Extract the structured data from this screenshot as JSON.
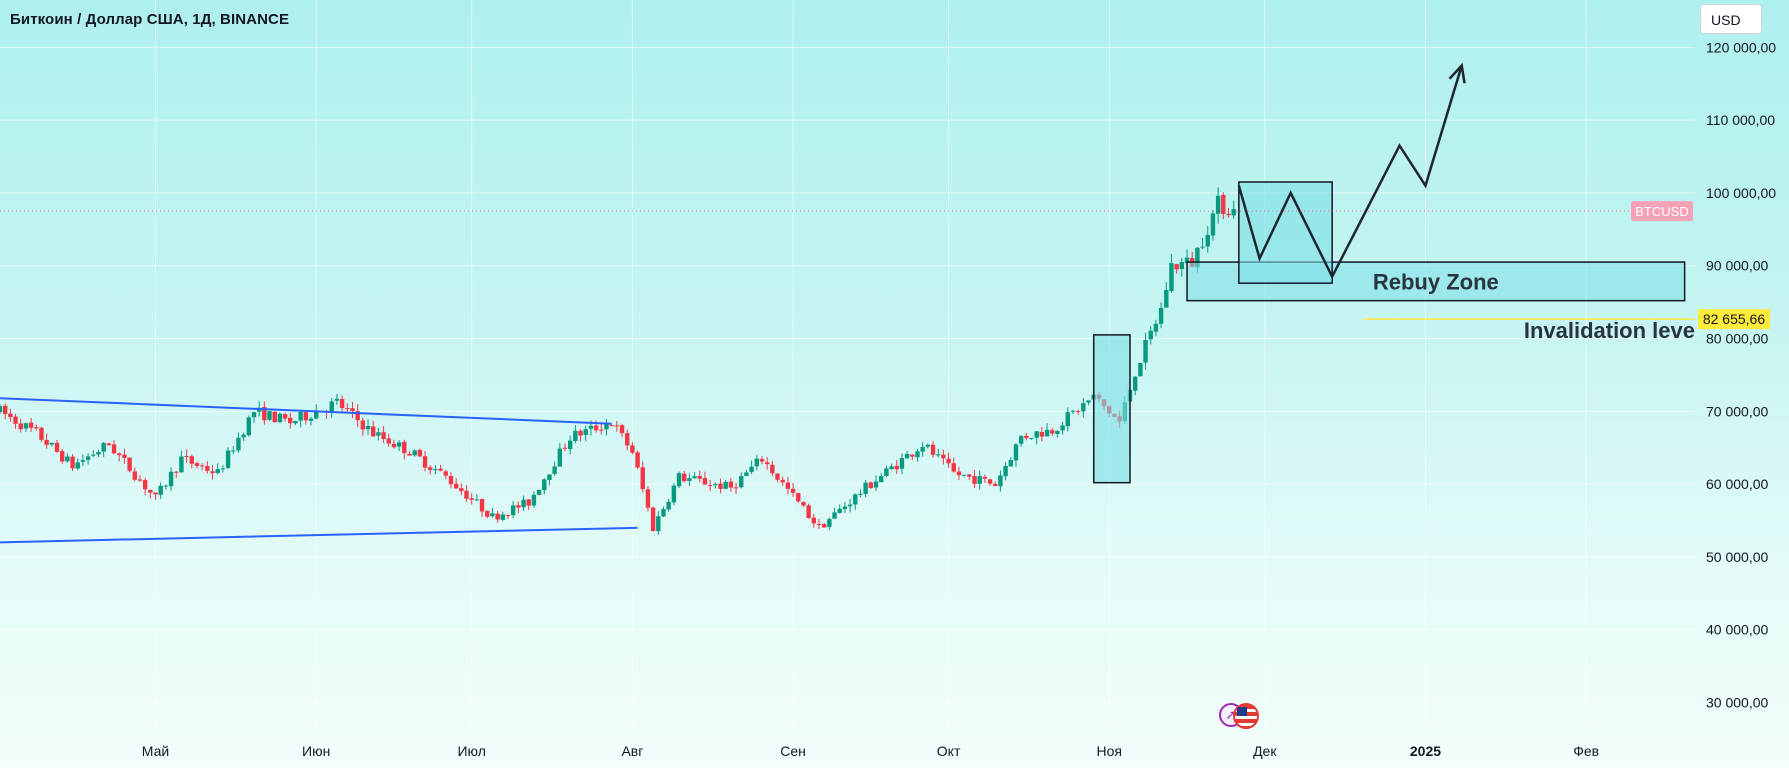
{
  "header": {
    "title": "Биткоин / Доллар США, 1Д, BINANCE",
    "currency_button": "USD"
  },
  "chart_data": {
    "type": "candlestick",
    "symbol": "BTCUSD",
    "last_price_label": "BTCUSD",
    "price_axis_ticks": [
      "120 000,00",
      "110 000,00",
      "100 000,00",
      "90 000,00",
      "80 000,00",
      "70 000,00",
      "60 000,00",
      "50 000,00",
      "40 000,00",
      "30 000,00"
    ],
    "price_axis_values": [
      120000,
      110000,
      100000,
      90000,
      80000,
      70000,
      60000,
      50000,
      40000,
      30000
    ],
    "time_axis_labels": [
      {
        "label": "Май",
        "date": "2024-05-01"
      },
      {
        "label": "Июн",
        "date": "2024-06-01"
      },
      {
        "label": "Июл",
        "date": "2024-07-01"
      },
      {
        "label": "Авг",
        "date": "2024-08-01"
      },
      {
        "label": "Сен",
        "date": "2024-09-01"
      },
      {
        "label": "Окт",
        "date": "2024-10-01"
      },
      {
        "label": "Ноя",
        "date": "2024-11-01"
      },
      {
        "label": "Дек",
        "date": "2024-12-01"
      },
      {
        "label": "2025",
        "date": "2025-01-01",
        "bold": true
      },
      {
        "label": "Фев",
        "date": "2025-02-01"
      }
    ],
    "ylim": [
      26500,
      126500
    ],
    "xlim": [
      "2024-04-01",
      "2025-02-22"
    ],
    "grid": true,
    "colors": {
      "up": "#089981",
      "down": "#f23645",
      "trendline": "#2962ff",
      "zone": "#7ddfe6",
      "highlight": "#ffeb3b",
      "last_price": "#f7a1b7"
    },
    "anchors": [
      [
        "2024-04-01",
        70000
      ],
      [
        "2024-04-08",
        67000
      ],
      [
        "2024-04-15",
        62500
      ],
      [
        "2024-04-22",
        65500
      ],
      [
        "2024-05-01",
        58000
      ],
      [
        "2024-05-06",
        63500
      ],
      [
        "2024-05-13",
        61500
      ],
      [
        "2024-05-20",
        70000
      ],
      [
        "2024-05-27",
        68500
      ],
      [
        "2024-06-05",
        71200
      ],
      [
        "2024-06-12",
        67000
      ],
      [
        "2024-06-19",
        64500
      ],
      [
        "2024-06-26",
        61000
      ],
      [
        "2024-07-05",
        55500
      ],
      [
        "2024-07-12",
        57500
      ],
      [
        "2024-07-20",
        66500
      ],
      [
        "2024-07-28",
        68500
      ],
      [
        "2024-08-01",
        64500
      ],
      [
        "2024-08-05",
        54000
      ],
      [
        "2024-08-10",
        61000
      ],
      [
        "2024-08-20",
        59500
      ],
      [
        "2024-08-26",
        63500
      ],
      [
        "2024-09-06",
        54000
      ],
      [
        "2024-09-15",
        59500
      ],
      [
        "2024-09-26",
        65500
      ],
      [
        "2024-10-02",
        61500
      ],
      [
        "2024-10-10",
        60000
      ],
      [
        "2024-10-15",
        66500
      ],
      [
        "2024-10-21",
        67500
      ],
      [
        "2024-10-29",
        72000
      ],
      [
        "2024-11-03",
        68500
      ],
      [
        "2024-11-06",
        75500
      ],
      [
        "2024-11-11",
        84000
      ],
      [
        "2024-11-13",
        90000
      ],
      [
        "2024-11-17",
        90500
      ],
      [
        "2024-11-22",
        98500
      ],
      [
        "2024-11-25",
        97500
      ]
    ],
    "trendlines": [
      {
        "from": [
          "2024-04-01",
          71800
        ],
        "to": [
          "2024-07-28",
          68300
        ]
      },
      {
        "from": [
          "2024-04-01",
          52000
        ],
        "to": [
          "2024-08-02",
          54000
        ]
      }
    ],
    "annotations": {
      "rebuy_zone": {
        "label": "Rebuy Zone",
        "from_date": "2024-11-16",
        "to_date": "2025-02-20",
        "top": 90500,
        "bottom": 85200
      },
      "invalidation": {
        "label": "Invalidation leve",
        "price": 82655.66,
        "price_label": "82 655,66",
        "from_date": "2024-12-20"
      },
      "boxes": [
        {
          "from_date": "2024-10-29",
          "to_date": "2024-11-05",
          "top": 80500,
          "bottom": 60200
        },
        {
          "from_date": "2024-11-26",
          "to_date": "2024-12-14",
          "top": 101500,
          "bottom": 87600
        }
      ],
      "projection_path": [
        [
          "2024-11-26",
          101000
        ],
        [
          "2024-11-30",
          91000
        ],
        [
          "2024-12-06",
          100000
        ],
        [
          "2024-12-14",
          88500
        ],
        [
          "2024-12-27",
          106500
        ],
        [
          "2025-01-01",
          101000
        ],
        [
          "2025-01-08",
          117500
        ]
      ]
    }
  },
  "icons": {
    "first": "rocket-icon",
    "second": "us-flag-icon"
  }
}
